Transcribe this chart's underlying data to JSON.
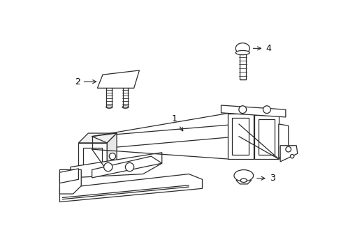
{
  "background_color": "#ffffff",
  "line_color": "#2a2a2a",
  "label_color": "#000000",
  "fig_width": 4.89,
  "fig_height": 3.6,
  "dpi": 100,
  "label_fontsize": 9
}
